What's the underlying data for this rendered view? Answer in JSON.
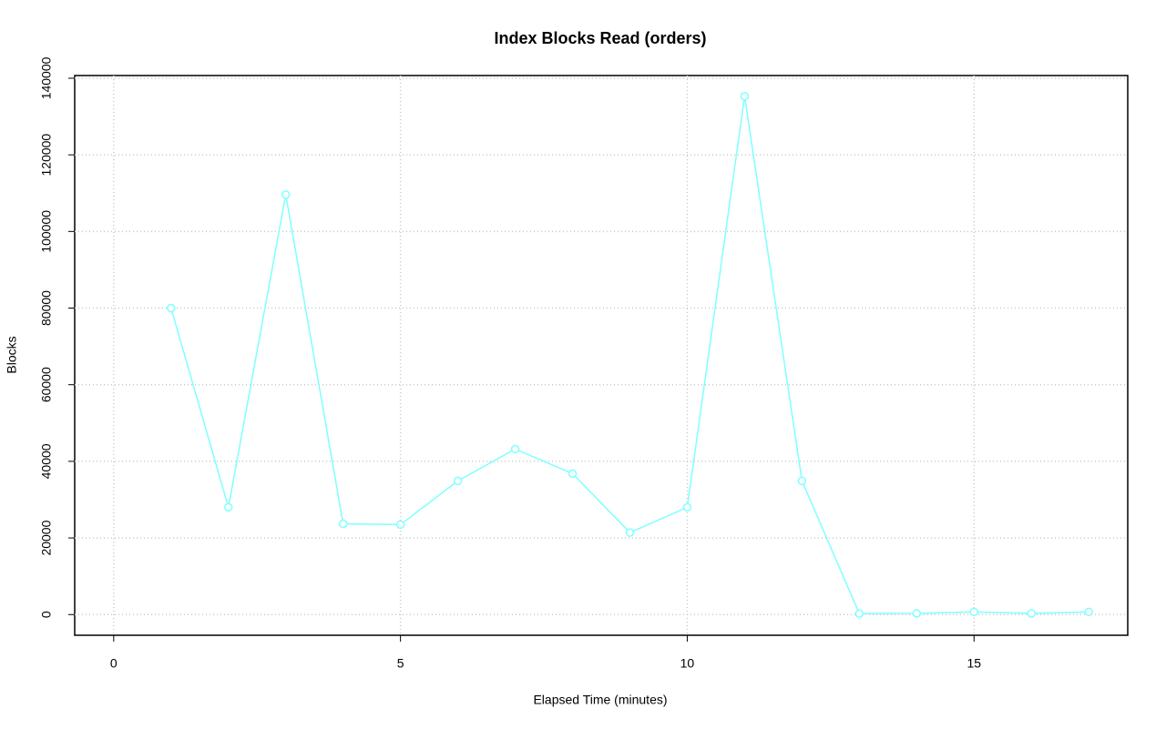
{
  "chart_data": {
    "type": "line",
    "title": "Index Blocks Read (orders)",
    "x_label": "Elapsed Time (minutes)",
    "y_label": "Blocks",
    "x": [
      1,
      2,
      3,
      4,
      5,
      6,
      7,
      8,
      9,
      10,
      11,
      12,
      13,
      14,
      15,
      16,
      17
    ],
    "series": [
      {
        "name": "orders",
        "color": "#80ffff",
        "values": [
          80000,
          28000,
          109600,
          23700,
          23500,
          34900,
          43200,
          36800,
          21400,
          28000,
          135300,
          34900,
          240,
          300,
          700,
          300,
          700
        ]
      }
    ],
    "xlim": [
      -0.68,
      17.68
    ],
    "xticks": [
      0,
      5,
      10,
      15
    ],
    "ylim": [
      -5400,
      140700
    ],
    "yticks": [
      0,
      20000,
      40000,
      60000,
      80000,
      100000,
      120000,
      140000
    ],
    "grid": true
  }
}
